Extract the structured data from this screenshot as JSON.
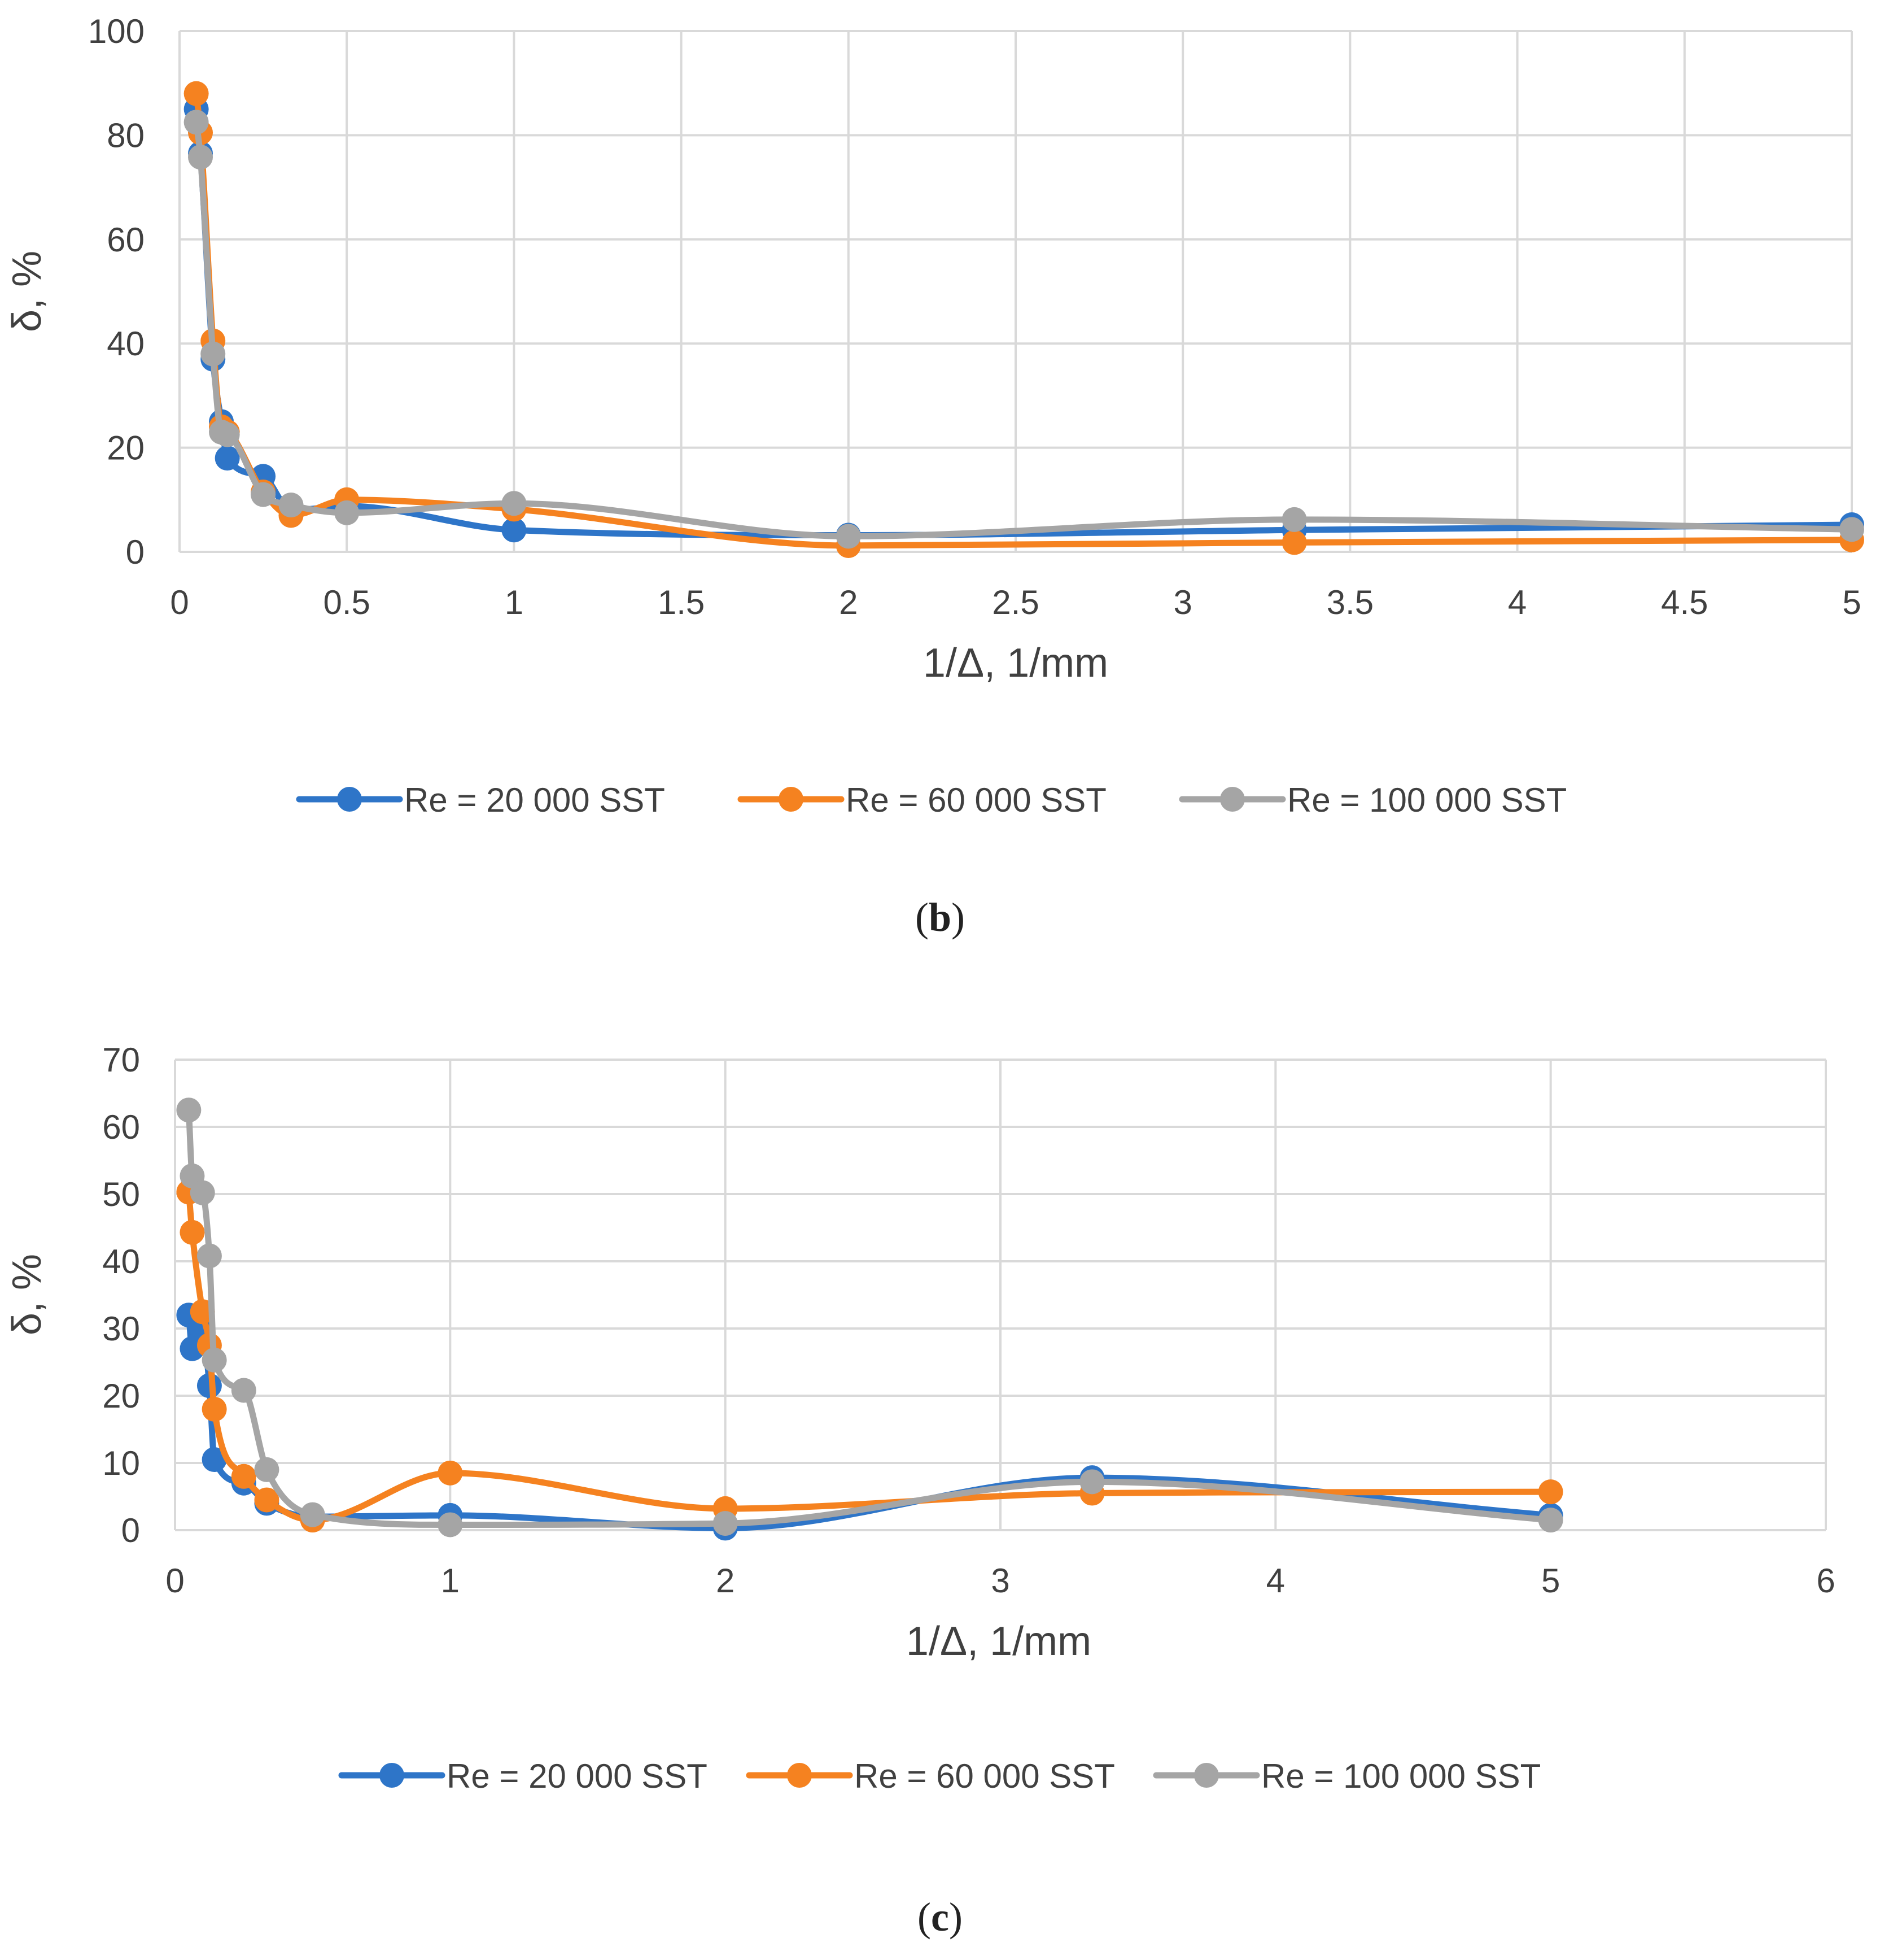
{
  "chart_data": [
    {
      "id": "b",
      "type": "line",
      "caption": "b",
      "xlabel": "1/Δ, 1/mm",
      "ylabel": "δ, %",
      "xlim": [
        0,
        5
      ],
      "ylim": [
        0,
        100
      ],
      "xticks": [
        0,
        0.5,
        1,
        1.5,
        2,
        2.5,
        3,
        3.5,
        4,
        4.5,
        5
      ],
      "yticks": [
        0,
        20,
        40,
        60,
        80,
        100
      ],
      "xtick_labels": [
        "0",
        "0.5",
        "1",
        "1.5",
        "2",
        "2.5",
        "3",
        "3.5",
        "4",
        "4.5",
        "5"
      ],
      "ytick_labels": [
        "0",
        "20",
        "40",
        "60",
        "80",
        "100"
      ],
      "grid": true,
      "legend_position": "bottom",
      "series": [
        {
          "name": "Re = 20 000 SST",
          "color": "#2E75C8",
          "x": [
            0.05,
            0.0625,
            0.1,
            0.125,
            0.1429,
            0.25,
            0.3333,
            0.5,
            1,
            2,
            3.3333,
            5
          ],
          "y": [
            85,
            76.5,
            37,
            25,
            18,
            14.5,
            8,
            8.8,
            4.2,
            3.2,
            4.2,
            5.2
          ]
        },
        {
          "name": "Re = 60 000 SST",
          "color": "#F58220",
          "x": [
            0.05,
            0.0625,
            0.1,
            0.125,
            0.1429,
            0.25,
            0.3333,
            0.5,
            1,
            2,
            3.3333,
            5
          ],
          "y": [
            88,
            80.5,
            40.5,
            24,
            23,
            11.5,
            7,
            10,
            8.2,
            1.2,
            1.8,
            2.3
          ]
        },
        {
          "name": "Re = 100 000 SST",
          "color": "#A5A5A5",
          "x": [
            0.05,
            0.0625,
            0.1,
            0.125,
            0.1429,
            0.25,
            0.3333,
            0.5,
            1,
            2,
            3.3333,
            5
          ],
          "y": [
            82.5,
            75.8,
            38,
            23,
            22.5,
            11,
            9,
            7.5,
            9.3,
            3,
            6.2,
            4.3
          ]
        }
      ]
    },
    {
      "id": "c",
      "type": "line",
      "caption": "c",
      "xlabel": "1/Δ, 1/mm",
      "ylabel": "δ, %",
      "xlim": [
        0,
        6
      ],
      "ylim": [
        0,
        70
      ],
      "xticks": [
        0,
        1,
        2,
        3,
        4,
        5,
        6
      ],
      "yticks": [
        0,
        10,
        20,
        30,
        40,
        50,
        60,
        70
      ],
      "xtick_labels": [
        "0",
        "1",
        "2",
        "3",
        "4",
        "5",
        "6"
      ],
      "ytick_labels": [
        "0",
        "10",
        "20",
        "30",
        "40",
        "50",
        "60",
        "70"
      ],
      "grid": true,
      "legend_position": "bottom",
      "series": [
        {
          "name": "Re = 20 000 SST",
          "color": "#2E75C8",
          "x": [
            0.05,
            0.0625,
            0.1,
            0.125,
            0.1429,
            0.25,
            0.3333,
            0.5,
            1,
            2,
            3.3333,
            5
          ],
          "y": [
            32,
            27,
            29.5,
            21.5,
            10.5,
            7,
            4,
            2,
            2.2,
            0.3,
            7.8,
            2.2
          ]
        },
        {
          "name": "Re = 60 000 SST",
          "color": "#F58220",
          "x": [
            0.05,
            0.0625,
            0.1,
            0.125,
            0.1429,
            0.25,
            0.3333,
            0.5,
            1,
            2,
            3.3333,
            5
          ],
          "y": [
            50.3,
            44.3,
            32.5,
            27.5,
            18,
            8,
            4.5,
            1.5,
            8.5,
            3.2,
            5.5,
            5.7
          ]
        },
        {
          "name": "Re = 100 000 SST",
          "color": "#A5A5A5",
          "x": [
            0.05,
            0.0625,
            0.1,
            0.125,
            0.1429,
            0.25,
            0.3333,
            0.5,
            1,
            2,
            3.3333,
            5
          ],
          "y": [
            62.5,
            52.7,
            50.2,
            40.8,
            25.3,
            20.8,
            9,
            2.3,
            0.8,
            1,
            7.2,
            1.5
          ]
        }
      ]
    }
  ]
}
